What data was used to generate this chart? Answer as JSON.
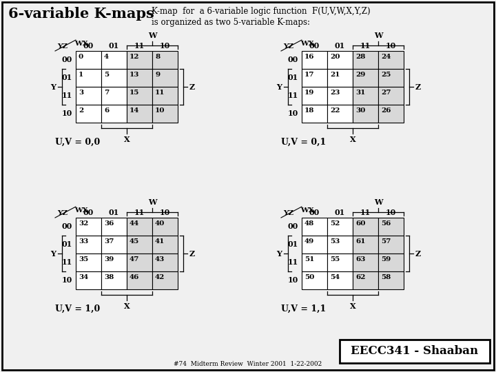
{
  "title_left": "6-variable K-maps",
  "title_right_line1": "K-map  for  a 6-variable logic function  F(U,V,W,X,Y,Z)",
  "title_right_line2": "is organized as two 5-variable K-maps:",
  "col_headers": [
    "00",
    "01",
    "11",
    "10"
  ],
  "row_headers": [
    "00",
    "01",
    "11",
    "10"
  ],
  "wx_label": "WX",
  "yz_label": "YZ",
  "w_label": "W",
  "x_label": "X",
  "y_label": "Y",
  "z_label": "Z",
  "kmaps": [
    {
      "label": "U,V = 0,0",
      "values": [
        [
          0,
          4,
          12,
          8
        ],
        [
          1,
          5,
          13,
          9
        ],
        [
          3,
          7,
          15,
          11
        ],
        [
          2,
          6,
          14,
          10
        ]
      ]
    },
    {
      "label": "U,V = 0,1",
      "values": [
        [
          16,
          20,
          28,
          24
        ],
        [
          17,
          21,
          29,
          25
        ],
        [
          19,
          23,
          31,
          27
        ],
        [
          18,
          22,
          30,
          26
        ]
      ]
    },
    {
      "label": "U,V = 1,0",
      "values": [
        [
          32,
          36,
          44,
          40
        ],
        [
          33,
          37,
          45,
          41
        ],
        [
          35,
          39,
          47,
          43
        ],
        [
          34,
          38,
          46,
          42
        ]
      ]
    },
    {
      "label": "U,V = 1,1",
      "values": [
        [
          48,
          52,
          60,
          56
        ],
        [
          49,
          53,
          61,
          57
        ],
        [
          51,
          55,
          63,
          59
        ],
        [
          50,
          54,
          62,
          58
        ]
      ]
    }
  ],
  "bg_color": "#f0f0f0",
  "footer": "#74  Midterm Review  Winter 2001  1-22-2002"
}
